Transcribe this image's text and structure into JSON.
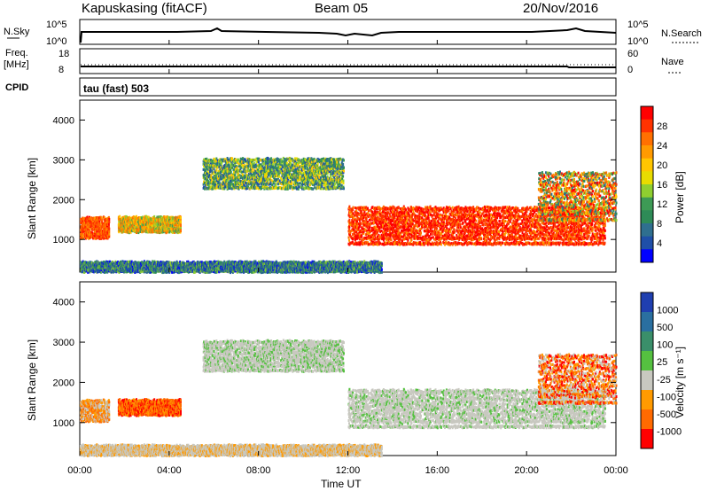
{
  "header": {
    "station": "Kapuskasing (fitACF)",
    "beam": "Beam 05",
    "date": "20/Nov/2016"
  },
  "strips": {
    "nsky_label": "N.Sky",
    "nsky_ticks": [
      "10^5",
      "10^0"
    ],
    "nsearch_label": "N.Search",
    "nsearch_ticks": [
      "10^5",
      "10^0"
    ],
    "freq_label_1": "Freq.",
    "freq_label_2": "[MHz]",
    "freq_ticks": [
      "18",
      "8"
    ],
    "nave_label": "Nave",
    "nave_ticks": [
      "60",
      "0"
    ],
    "cpid_label": "CPID",
    "cpid_text": "tau (fast) 503"
  },
  "panels": {
    "ylabel": "Slant Range [km]",
    "xlabel": "Time UT",
    "yticks": [
      "4000",
      "3000",
      "2000",
      "1000"
    ],
    "xticks": [
      "00:00",
      "04:00",
      "08:00",
      "12:00",
      "16:00",
      "20:00",
      "00:00"
    ]
  },
  "power_scale": {
    "label": "Power [dB]",
    "ticks": [
      "28",
      "24",
      "20",
      "16",
      "12",
      "8",
      "4"
    ],
    "colors": [
      "#ff0000",
      "#ff3300",
      "#ff7000",
      "#ff9a00",
      "#ffc600",
      "#e8dc00",
      "#8fcf30",
      "#3d9a55",
      "#2e8b57",
      "#2f6f8f",
      "#1f4fa8",
      "#0000ff"
    ]
  },
  "velocity_scale": {
    "label": "Velocity [m s⁻¹]",
    "ticks": [
      "1000",
      "500",
      "100",
      "25",
      "-25",
      "-100",
      "-500",
      "-1000"
    ],
    "colors": [
      "#1f3fb0",
      "#2a6fa0",
      "#3a8f6a",
      "#55c040",
      "#c8c8c0",
      "#ff9a00",
      "#ff6a00",
      "#ff0000"
    ]
  },
  "chart_data": {
    "type": "heatmap",
    "x_range_hours": [
      0,
      24
    ],
    "y_range_km": [
      180,
      4500
    ],
    "power_regions": [
      {
        "t0": 0.0,
        "t1": 1.3,
        "r0": 1050,
        "r1": 1600,
        "level": "orange-red"
      },
      {
        "t0": 1.7,
        "t1": 4.5,
        "r0": 1200,
        "r1": 1600,
        "level": "green-orange"
      },
      {
        "t0": 5.5,
        "t1": 11.8,
        "r0": 2300,
        "r1": 3100,
        "level": "green-blue"
      },
      {
        "t0": 12.0,
        "t1": 23.5,
        "r0": 900,
        "r1": 1900,
        "level": "red-orange"
      },
      {
        "t0": 20.5,
        "t1": 24.0,
        "r0": 1500,
        "r1": 2800,
        "level": "mixed"
      },
      {
        "t0": 0.0,
        "t1": 13.5,
        "r0": 200,
        "r1": 450,
        "level": "blue-green"
      }
    ]
  }
}
